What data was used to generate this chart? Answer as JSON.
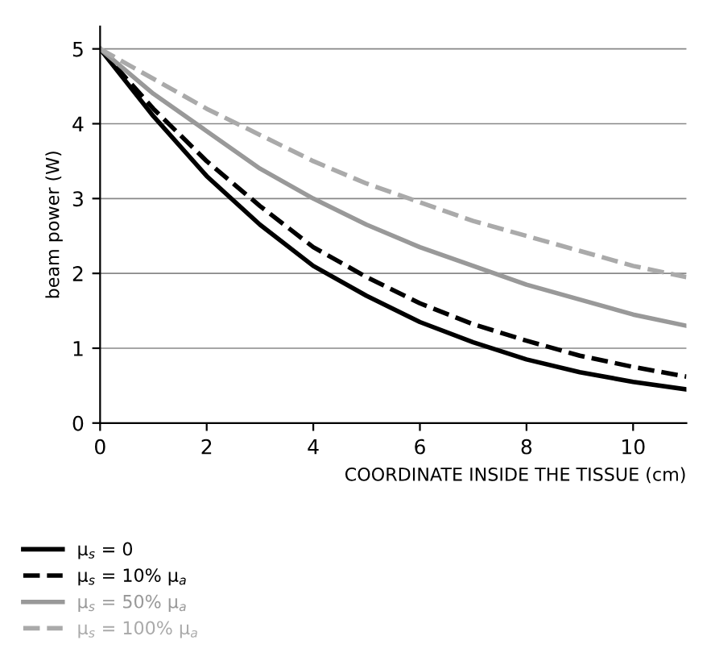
{
  "chart_data": {
    "type": "line",
    "xlabel": "COORDINATE INSIDE THE TISSUE (cm)",
    "ylabel": "beam power (W)",
    "x": [
      0,
      1,
      2,
      3,
      4,
      5,
      6,
      7,
      8,
      9,
      10,
      11
    ],
    "series": [
      {
        "name": "μ$_{s}$ = 0",
        "color": "#000000",
        "line_style": "solid",
        "values": [
          5,
          4.1,
          3.3,
          2.65,
          2.1,
          1.7,
          1.35,
          1.08,
          0.85,
          0.68,
          0.55,
          0.45
        ]
      },
      {
        "name": "μ$_{s}$ = 10% μ$_{a}$",
        "color": "#000000",
        "line_style": "dashed",
        "values": [
          5,
          4.2,
          3.5,
          2.9,
          2.35,
          1.95,
          1.6,
          1.32,
          1.1,
          0.9,
          0.75,
          0.62
        ]
      },
      {
        "name": "μ$_{s}$ = 50% μ$_{a}$",
        "color": "#999999",
        "line_style": "solid",
        "values": [
          5,
          4.4,
          3.9,
          3.4,
          3.0,
          2.65,
          2.35,
          2.1,
          1.85,
          1.65,
          1.45,
          1.3
        ]
      },
      {
        "name": "μ$_{s}$ = 100% μ$_{a}$",
        "color": "#aaaaaa",
        "line_style": "dashed",
        "values": [
          5,
          4.6,
          4.2,
          3.85,
          3.5,
          3.2,
          2.95,
          2.7,
          2.5,
          2.3,
          2.1,
          1.95
        ]
      }
    ],
    "xlim": [
      0,
      11
    ],
    "ylim": [
      0,
      5.3
    ],
    "xticks": [
      0,
      2,
      4,
      6,
      8,
      10
    ],
    "yticks": [
      0,
      1,
      2,
      3,
      4,
      5
    ],
    "grid": "y",
    "legend": "bottom left"
  }
}
